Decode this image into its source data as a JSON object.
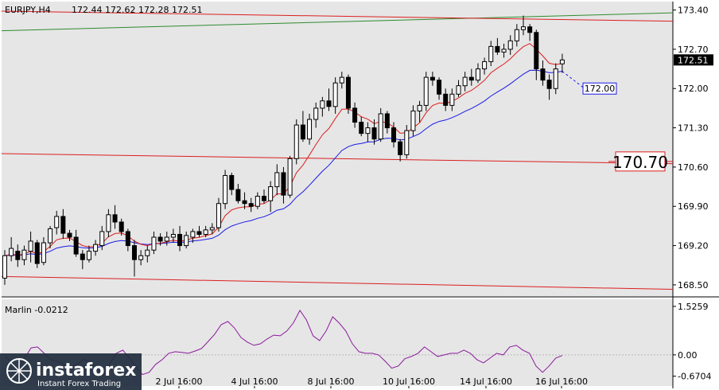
{
  "header": {
    "symbol_tf": "EURJPY,H4",
    "ohlc": "172.44 172.62 172.28 172.51"
  },
  "indicator": {
    "label": "Marlin -0.0212"
  },
  "logo": {
    "brand": "instaforex",
    "tagline": "Instant Forex Trading"
  },
  "price_tag": "172.51",
  "level_labels": {
    "target": "172.00",
    "support": "170.70"
  },
  "colors": {
    "background": "#e6e6e6",
    "candle_body": "#000000",
    "red_line": "#dc1e1e",
    "green_line": "#2e8b2e",
    "blue_line": "#1a1ae6",
    "osc_line": "#8b1a9c",
    "logo_bg": "#1f2d3d"
  },
  "chart_data": [
    {
      "type": "candlestick",
      "title": "EURJPY,H4",
      "ylim": [
        168.3,
        173.55
      ],
      "yticks": [
        "173.40",
        "172.70",
        "172.00",
        "171.30",
        "170.60",
        "169.90",
        "169.20",
        "168.50"
      ],
      "xticks": [
        "2 Jul 16:00",
        "4 Jul 16:00",
        "8 Jul 16:00",
        "10 Jul 16:00",
        "14 Jul 16:00",
        "16 Jul 16:00"
      ],
      "current_price": 172.51,
      "levels": [
        {
          "label": "172.00",
          "value": 172.0,
          "color": "#1a1ae6",
          "style": "dashed"
        },
        {
          "label": "170.70",
          "value": 170.7,
          "color": "#dc1e1e",
          "style": "solid"
        }
      ],
      "candles": [
        [
          168.62,
          169.12,
          168.5,
          169.02
        ],
        [
          169.02,
          169.35,
          168.92,
          169.15
        ],
        [
          169.1,
          169.22,
          168.82,
          168.95
        ],
        [
          168.95,
          169.2,
          168.85,
          169.12
        ],
        [
          169.1,
          169.45,
          168.9,
          169.28
        ],
        [
          169.25,
          169.3,
          168.8,
          168.88
        ],
        [
          168.9,
          169.35,
          168.85,
          169.25
        ],
        [
          169.25,
          169.55,
          169.15,
          169.5
        ],
        [
          169.52,
          169.82,
          169.4,
          169.72
        ],
        [
          169.72,
          169.85,
          169.32,
          169.42
        ],
        [
          169.42,
          169.48,
          169.28,
          169.35
        ],
        [
          169.35,
          169.48,
          169.0,
          169.05
        ],
        [
          169.05,
          169.12,
          168.78,
          168.95
        ],
        [
          168.95,
          169.2,
          168.9,
          169.1
        ],
        [
          169.1,
          169.3,
          169.02,
          169.22
        ],
        [
          169.2,
          169.55,
          169.12,
          169.45
        ],
        [
          169.45,
          169.85,
          169.35,
          169.75
        ],
        [
          169.75,
          169.92,
          169.5,
          169.62
        ],
        [
          169.62,
          169.68,
          169.38,
          169.45
        ],
        [
          169.45,
          169.5,
          169.1,
          169.2
        ],
        [
          169.2,
          169.3,
          168.65,
          168.95
        ],
        [
          168.95,
          169.12,
          168.85,
          169.02
        ],
        [
          169.02,
          169.2,
          168.9,
          169.12
        ],
        [
          169.12,
          169.45,
          169.05,
          169.35
        ],
        [
          169.35,
          169.42,
          169.2,
          169.28
        ],
        [
          169.28,
          169.45,
          169.2,
          169.35
        ],
        [
          169.35,
          169.5,
          169.25,
          169.4
        ],
        [
          169.4,
          169.55,
          169.1,
          169.2
        ],
        [
          169.2,
          169.45,
          169.15,
          169.38
        ],
        [
          169.35,
          169.5,
          169.25,
          169.45
        ],
        [
          169.45,
          169.55,
          169.35,
          169.4
        ],
        [
          169.4,
          169.55,
          169.35,
          169.48
        ],
        [
          169.48,
          169.6,
          169.4,
          169.52
        ],
        [
          169.52,
          170.05,
          169.45,
          169.95
        ],
        [
          169.95,
          170.55,
          169.85,
          170.45
        ],
        [
          170.45,
          170.5,
          170.1,
          170.2
        ],
        [
          170.2,
          170.3,
          169.95,
          170.0
        ],
        [
          170.0,
          170.15,
          169.85,
          169.95
        ],
        [
          169.95,
          170.05,
          169.8,
          169.9
        ],
        [
          169.9,
          170.15,
          169.85,
          170.08
        ],
        [
          170.08,
          170.2,
          169.95,
          170.0
        ],
        [
          170.0,
          170.35,
          169.8,
          170.25
        ],
        [
          170.25,
          170.65,
          170.1,
          170.5
        ],
        [
          170.5,
          170.6,
          169.95,
          170.1
        ],
        [
          170.1,
          170.8,
          170.05,
          170.75
        ],
        [
          170.75,
          171.45,
          170.65,
          171.35
        ],
        [
          171.35,
          171.6,
          171.05,
          171.1
        ],
        [
          171.1,
          171.55,
          171.0,
          171.45
        ],
        [
          171.45,
          171.75,
          171.3,
          171.65
        ],
        [
          171.65,
          171.85,
          171.5,
          171.78
        ],
        [
          171.78,
          172.0,
          171.6,
          171.68
        ],
        [
          171.68,
          172.2,
          171.55,
          172.1
        ],
        [
          172.1,
          172.3,
          172.0,
          172.2
        ],
        [
          172.2,
          172.25,
          171.55,
          171.65
        ],
        [
          171.65,
          171.75,
          171.3,
          171.4
        ],
        [
          171.4,
          171.5,
          171.15,
          171.2
        ],
        [
          171.2,
          171.4,
          171.05,
          171.3
        ],
        [
          171.3,
          171.45,
          171.0,
          171.1
        ],
        [
          171.1,
          171.65,
          171.05,
          171.55
        ],
        [
          171.55,
          171.6,
          171.2,
          171.3
        ],
        [
          171.3,
          171.4,
          170.95,
          171.05
        ],
        [
          171.05,
          171.1,
          170.7,
          170.82
        ],
        [
          170.82,
          171.35,
          170.75,
          171.25
        ],
        [
          171.25,
          171.7,
          171.15,
          171.6
        ],
        [
          171.6,
          171.78,
          171.4,
          171.7
        ],
        [
          171.7,
          172.3,
          171.6,
          172.2
        ],
        [
          172.2,
          172.3,
          172.05,
          172.15
        ],
        [
          172.15,
          172.2,
          171.8,
          171.9
        ],
        [
          171.9,
          172.0,
          171.6,
          171.7
        ],
        [
          171.7,
          172.0,
          171.6,
          171.9
        ],
        [
          171.9,
          172.15,
          171.85,
          172.05
        ],
        [
          172.05,
          172.3,
          171.95,
          172.2
        ],
        [
          172.2,
          172.35,
          172.05,
          172.15
        ],
        [
          172.15,
          172.45,
          172.1,
          172.35
        ],
        [
          172.35,
          172.55,
          172.25,
          172.48
        ],
        [
          172.48,
          172.85,
          172.4,
          172.75
        ],
        [
          172.75,
          172.9,
          172.6,
          172.65
        ],
        [
          172.65,
          172.8,
          172.55,
          172.7
        ],
        [
          172.7,
          172.95,
          172.6,
          172.85
        ],
        [
          172.85,
          173.15,
          172.75,
          173.05
        ],
        [
          173.05,
          173.3,
          172.95,
          173.1
        ],
        [
          173.1,
          173.15,
          172.85,
          173.0
        ],
        [
          173.0,
          173.05,
          172.15,
          172.35
        ],
        [
          172.35,
          172.5,
          172.05,
          172.15
        ],
        [
          172.15,
          172.25,
          171.8,
          172.0
        ],
        [
          172.0,
          172.45,
          171.9,
          172.35
        ],
        [
          172.44,
          172.62,
          172.28,
          172.51
        ]
      ]
    },
    {
      "type": "line",
      "title": "Marlin -0.0212",
      "ylim": [
        -0.98,
        1.75
      ],
      "yticks": [
        "1.5259",
        "0.00",
        "-0.6704"
      ],
      "series": [
        {
          "name": "Marlin",
          "values": [
            -0.05,
            -0.2,
            -0.48,
            -0.12,
            0.22,
            0.25,
            0.05,
            -0.15,
            -0.2,
            -0.3,
            -0.4,
            -0.3,
            -0.15,
            -0.2,
            -0.4,
            -0.65,
            -0.3,
            0.05,
            0.15,
            -0.1,
            -0.38,
            -0.62,
            -0.55,
            -0.3,
            -0.15,
            0.05,
            0.1,
            0.08,
            0.05,
            0.12,
            0.2,
            0.42,
            0.65,
            0.95,
            1.05,
            0.85,
            0.55,
            0.4,
            0.3,
            0.35,
            0.5,
            0.62,
            0.6,
            0.75,
            1.0,
            1.4,
            1.1,
            0.6,
            0.45,
            0.75,
            1.2,
            1.0,
            0.75,
            0.35,
            0.1,
            0.05,
            0.05,
            0.0,
            -0.2,
            -0.42,
            -0.35,
            -0.12,
            -0.05,
            0.05,
            0.25,
            0.1,
            -0.05,
            0.0,
            0.05,
            0.05,
            0.15,
            0.05,
            -0.15,
            -0.25,
            -0.1,
            0.05,
            0.0,
            0.25,
            0.3,
            0.15,
            0.05,
            -0.35,
            -0.55,
            -0.35,
            -0.1,
            -0.02
          ]
        }
      ]
    }
  ]
}
